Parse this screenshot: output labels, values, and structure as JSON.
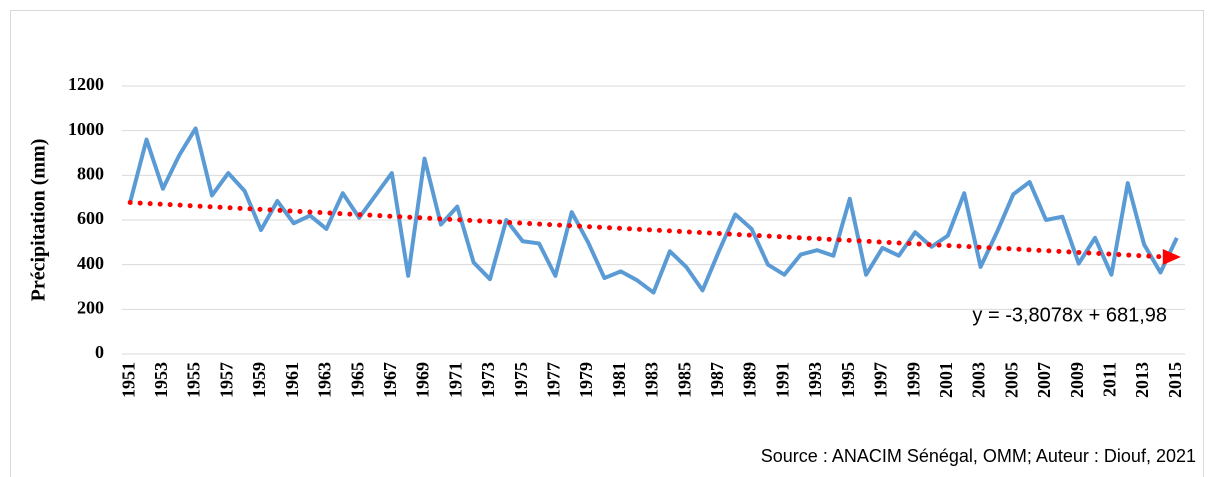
{
  "chart_data": {
    "type": "line",
    "y_label": "Précipitation (mm)",
    "source": "Source : ANACIM Sénégal, OMM; Auteur : Diouf, 2021",
    "categories": [
      "1951",
      null,
      "1953",
      null,
      "1955",
      null,
      "1957",
      null,
      "1959",
      null,
      "1961",
      null,
      "1963",
      null,
      "1965",
      null,
      "1967",
      null,
      "1969",
      null,
      "1971",
      null,
      "1973",
      null,
      "1975",
      null,
      "1977",
      null,
      "1979",
      null,
      "1981",
      null,
      "1983",
      null,
      "1985",
      null,
      "1987",
      null,
      "1989",
      null,
      "1991",
      null,
      "1993",
      null,
      "1995",
      null,
      "1997",
      null,
      "1999",
      null,
      "2001",
      null,
      "2003",
      null,
      "2005",
      null,
      "2007",
      null,
      "2009",
      null,
      "2011",
      null,
      "2013",
      null,
      "2015"
    ],
    "series": [
      {
        "color": "#5b9bd5",
        "values": [
          680,
          960,
          740,
          890,
          1010,
          710,
          810,
          730,
          555,
          685,
          585,
          620,
          560,
          720,
          610,
          710,
          810,
          350,
          875,
          580,
          660,
          410,
          335,
          600,
          505,
          495,
          350,
          635,
          500,
          340,
          370,
          330,
          275,
          460,
          390,
          285,
          460,
          625,
          560,
          400,
          355,
          445,
          465,
          440,
          695,
          355,
          475,
          440,
          545,
          480,
          530,
          720,
          390,
          545,
          715,
          770,
          600,
          615,
          405,
          520,
          355,
          765,
          490,
          365,
          520
        ]
      }
    ],
    "trendline": {
      "color": "#ff0000",
      "slope": -3.8078,
      "intercept": 681.98,
      "label": "y = -3,8078x + 681,98"
    },
    "ylim": [
      0,
      1200
    ],
    "yticks": [
      0,
      200,
      400,
      600,
      800,
      1000,
      1200
    ],
    "grid": true
  }
}
